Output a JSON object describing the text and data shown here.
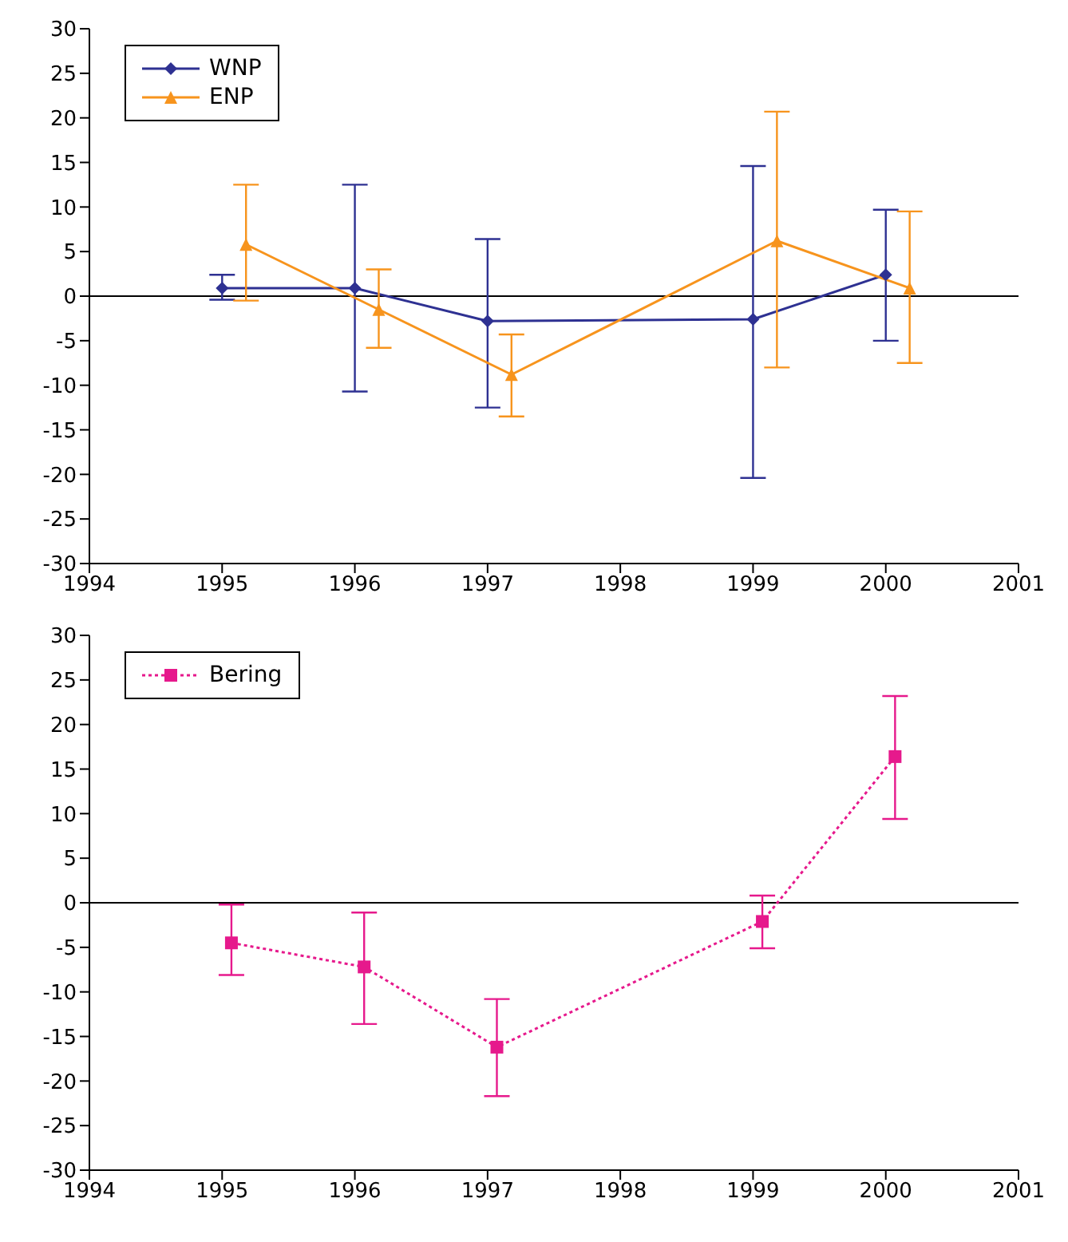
{
  "chart_data": [
    {
      "type": "line",
      "xlim": [
        1994,
        2001
      ],
      "xticks": [
        1994,
        1995,
        1996,
        1997,
        1998,
        1999,
        2000,
        2001
      ],
      "ylim": [
        -30,
        30
      ],
      "yticks": [
        -30,
        -25,
        -20,
        -15,
        -10,
        -5,
        0,
        5,
        10,
        15,
        20,
        25,
        30
      ],
      "legend": "top left",
      "ref_lines": [
        {
          "axis": "y",
          "value": 0,
          "color": "#000000"
        }
      ],
      "series": [
        {
          "name": "WNP",
          "color": "#2e3192",
          "marker": "diamond",
          "line_style": "solid",
          "x": [
            1995,
            1996,
            1997,
            1999,
            2000
          ],
          "values": [
            0.9,
            0.9,
            -2.8,
            -2.6,
            2.4
          ],
          "errors": [
            [
              -0.4,
              2.4
            ],
            [
              -10.7,
              12.5
            ],
            [
              -12.5,
              6.4
            ],
            [
              -20.4,
              14.6
            ],
            [
              -5,
              9.7
            ]
          ]
        },
        {
          "name": "ENP",
          "color": "#f7941d",
          "marker": "triangle",
          "line_style": "solid",
          "x": [
            1995.18,
            1996.18,
            1997.18,
            1999.18,
            2000.18
          ],
          "values": [
            5.8,
            -1.5,
            -8.8,
            6.2,
            0.9
          ],
          "errors": [
            [
              -0.5,
              12.5
            ],
            [
              -5.8,
              3
            ],
            [
              -13.5,
              -4.3
            ],
            [
              -8,
              20.7
            ],
            [
              -7.5,
              9.5
            ]
          ]
        }
      ]
    },
    {
      "type": "line",
      "xlim": [
        1994,
        2001
      ],
      "xticks": [
        1994,
        1995,
        1996,
        1997,
        1998,
        1999,
        2000,
        2001
      ],
      "ylim": [
        -30,
        30
      ],
      "yticks": [
        -30,
        -25,
        -20,
        -15,
        -10,
        -5,
        0,
        5,
        10,
        15,
        20,
        25,
        30
      ],
      "legend": "top left",
      "ref_lines": [
        {
          "axis": "y",
          "value": 0,
          "color": "#000000"
        }
      ],
      "series": [
        {
          "name": "Bering",
          "color": "#e6198c",
          "marker": "square",
          "line_style": "dotted",
          "x": [
            1995.07,
            1996.07,
            1997.07,
            1999.07,
            2000.07
          ],
          "values": [
            -4.5,
            -7.2,
            -16.2,
            -2.1,
            16.4
          ],
          "errors": [
            [
              -8.1,
              -0.2
            ],
            [
              -13.6,
              -1.1
            ],
            [
              -21.7,
              -10.8
            ],
            [
              -5.1,
              0.8
            ],
            [
              9.4,
              23.2
            ]
          ]
        }
      ]
    }
  ]
}
